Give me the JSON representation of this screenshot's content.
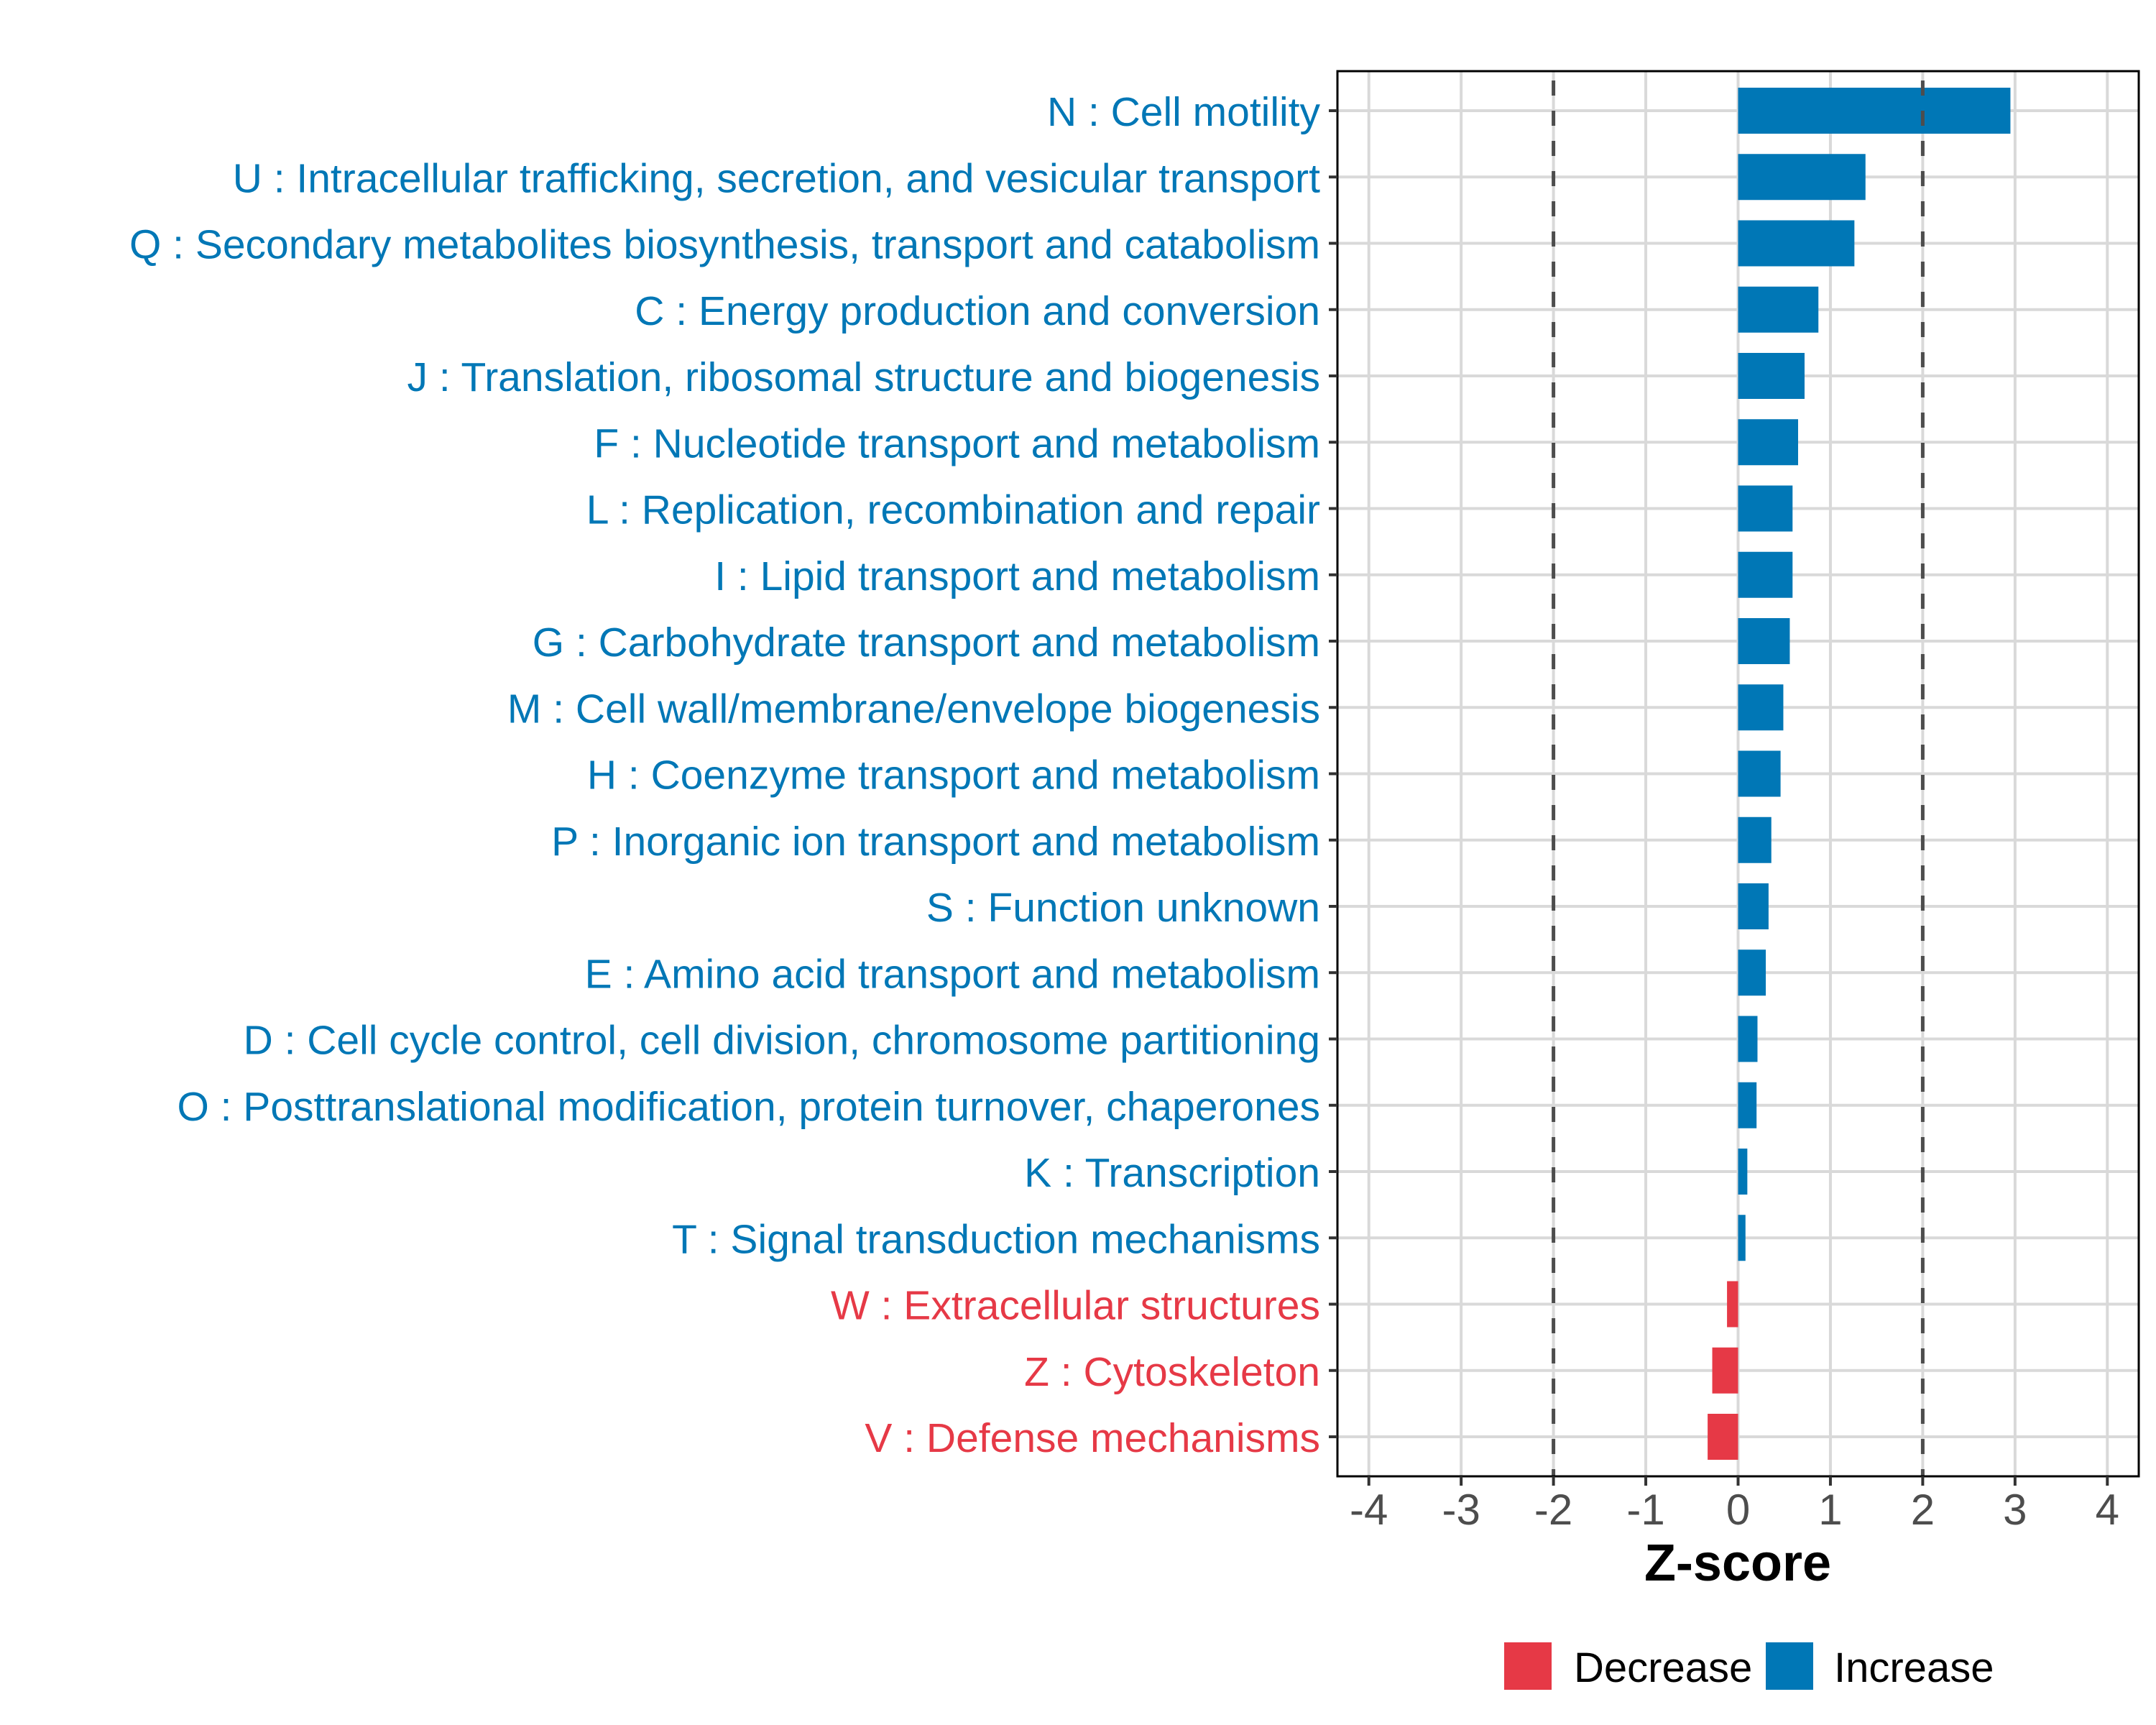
{
  "chart_data": {
    "type": "bar",
    "orientation": "horizontal",
    "title": "",
    "xlabel": "Z-score",
    "ylabel": "",
    "xlim": [
      -4.4,
      4.35
    ],
    "xticks": [
      -4,
      -3,
      -2,
      -1,
      0,
      1,
      2,
      3,
      4
    ],
    "xtick_labels": [
      "-4",
      "-3",
      "-2",
      "-1",
      "0",
      "1",
      "2",
      "3",
      "4"
    ],
    "grid": true,
    "threshold_lines": [
      -2,
      2
    ],
    "categories": [
      "N : Cell motility",
      "U : Intracellular trafficking, secretion, and vesicular transport",
      "Q : Secondary metabolites biosynthesis, transport and catabolism",
      "C : Energy production and conversion",
      "J : Translation, ribosomal structure and biogenesis",
      "F : Nucleotide transport and metabolism",
      "L : Replication, recombination and repair",
      "I : Lipid transport and metabolism",
      "G : Carbohydrate transport and metabolism",
      "M : Cell wall/membrane/envelope biogenesis",
      "H : Coenzyme transport and metabolism",
      "P : Inorganic ion transport and metabolism",
      "S : Function unknown",
      "E : Amino acid transport and metabolism",
      "D : Cell cycle control, cell division, chromosome partitioning",
      "O : Posttranslational modification, protein turnover, chaperones",
      "K : Transcription",
      "T : Signal transduction mechanisms",
      "W : Extracellular structures",
      "Z : Cytoskeleton",
      "V : Defense mechanisms"
    ],
    "values": [
      2.95,
      1.38,
      1.26,
      0.87,
      0.72,
      0.65,
      0.59,
      0.59,
      0.56,
      0.49,
      0.46,
      0.36,
      0.33,
      0.3,
      0.21,
      0.2,
      0.1,
      0.08,
      -0.12,
      -0.28,
      -0.33
    ],
    "groups": [
      "Increase",
      "Increase",
      "Increase",
      "Increase",
      "Increase",
      "Increase",
      "Increase",
      "Increase",
      "Increase",
      "Increase",
      "Increase",
      "Increase",
      "Increase",
      "Increase",
      "Increase",
      "Increase",
      "Increase",
      "Increase",
      "Decrease",
      "Decrease",
      "Decrease"
    ],
    "legend": {
      "position": "bottom",
      "entries": [
        {
          "label": "Decrease",
          "color": "#E63946"
        },
        {
          "label": "Increase",
          "color": "#0077B6"
        }
      ]
    },
    "colors": {
      "Increase": "#0077B6",
      "Decrease": "#E63946",
      "grid": "#D9D9D9",
      "threshold": "#4D4D4D",
      "axis": "#000000"
    }
  }
}
